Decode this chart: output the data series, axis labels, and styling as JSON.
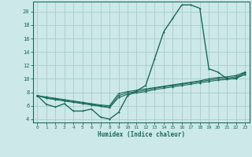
{
  "xlabel": "Humidex (Indice chaleur)",
  "bg_color": "#cce8e8",
  "grid_color": "#aacccc",
  "line_color": "#1a6b5a",
  "xlim": [
    -0.5,
    23.5
  ],
  "ylim": [
    3.5,
    21.5
  ],
  "yticks": [
    4,
    6,
    8,
    10,
    12,
    14,
    16,
    18,
    20
  ],
  "xticks": [
    0,
    1,
    2,
    3,
    4,
    5,
    6,
    7,
    8,
    9,
    10,
    11,
    12,
    13,
    14,
    15,
    16,
    17,
    18,
    19,
    20,
    21,
    22,
    23
  ],
  "curves": [
    {
      "x": [
        0,
        1,
        2,
        3,
        4,
        5,
        6,
        7,
        8,
        9,
        10,
        11,
        12,
        13,
        14,
        15,
        16,
        17,
        18,
        19,
        20,
        21,
        22,
        23
      ],
      "y": [
        7.5,
        6.2,
        5.8,
        6.3,
        5.2,
        5.2,
        5.5,
        4.3,
        4.0,
        5.0,
        7.5,
        8.2,
        9.0,
        13.0,
        17.0,
        19.0,
        21.0,
        21.0,
        20.5,
        11.5,
        11.0,
        10.0,
        10.0,
        11.0
      ]
    },
    {
      "x": [
        0,
        1,
        2,
        3,
        4,
        5,
        6,
        7,
        8,
        9,
        10,
        11,
        12,
        13,
        14,
        15,
        16,
        17,
        18,
        19,
        20,
        21,
        22,
        23
      ],
      "y": [
        7.5,
        7.3,
        7.1,
        6.9,
        6.7,
        6.5,
        6.3,
        6.1,
        6.0,
        7.8,
        8.1,
        8.3,
        8.5,
        8.7,
        8.9,
        9.1,
        9.3,
        9.5,
        9.7,
        10.0,
        10.2,
        10.3,
        10.5,
        11.0
      ]
    },
    {
      "x": [
        0,
        1,
        2,
        3,
        4,
        5,
        6,
        7,
        8,
        9,
        10,
        11,
        12,
        13,
        14,
        15,
        16,
        17,
        18,
        19,
        20,
        21,
        22,
        23
      ],
      "y": [
        7.5,
        7.2,
        7.0,
        6.8,
        6.6,
        6.4,
        6.2,
        6.0,
        5.8,
        7.5,
        7.9,
        8.1,
        8.3,
        8.6,
        8.8,
        9.0,
        9.2,
        9.4,
        9.6,
        9.8,
        10.0,
        10.1,
        10.3,
        10.8
      ]
    },
    {
      "x": [
        0,
        1,
        2,
        3,
        4,
        5,
        6,
        7,
        8,
        9,
        10,
        11,
        12,
        13,
        14,
        15,
        16,
        17,
        18,
        19,
        20,
        21,
        22,
        23
      ],
      "y": [
        7.5,
        7.1,
        6.9,
        6.7,
        6.5,
        6.3,
        6.1,
        5.9,
        5.7,
        7.2,
        7.7,
        7.9,
        8.1,
        8.4,
        8.6,
        8.8,
        9.0,
        9.2,
        9.4,
        9.6,
        9.8,
        9.9,
        10.1,
        10.6
      ]
    }
  ]
}
